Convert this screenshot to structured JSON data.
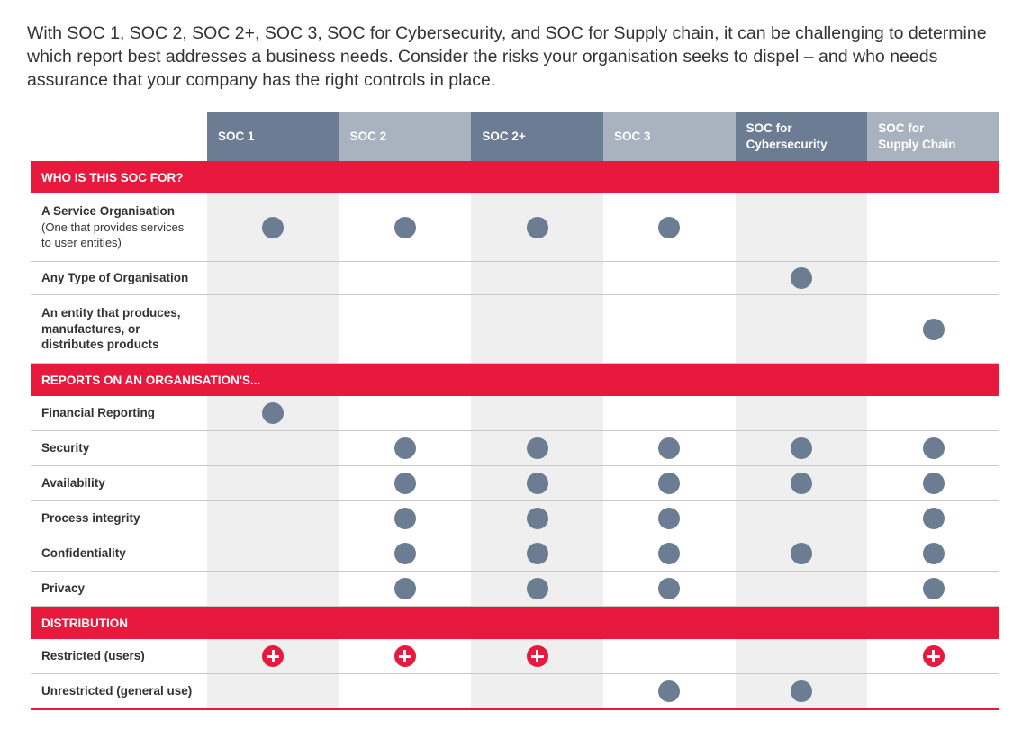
{
  "intro": "With SOC 1, SOC 2, SOC 2+, SOC 3, SOC for Cybersecurity, and SOC for Supply chain, it can be challenging to determine which report best addresses a business needs. Consider the risks your organisation seeks to dispel – and who needs assurance that your company has the right controls in place.",
  "colors": {
    "accent": "#e8193c",
    "dark_header": "#6b7c93",
    "light_header": "#a8b3bf",
    "dot": "#6b7c93",
    "shade": "#efefef"
  },
  "columns": [
    "SOC 1",
    "SOC 2",
    "SOC 2+",
    "SOC 3",
    "SOC for\nCybersecurity",
    "SOC for\nSupply Chain"
  ],
  "sections": [
    {
      "title": "WHO IS THIS SOC FOR?",
      "rows": [
        {
          "label": "A Service Organisation",
          "sub": "(One that provides services\nto user entities)",
          "marks": [
            "dot",
            "dot",
            "dot",
            "dot",
            "",
            ""
          ],
          "height": 76
        },
        {
          "label": "Any Type of Organisation",
          "sub": "",
          "marks": [
            "",
            "",
            "",
            "",
            "dot",
            ""
          ],
          "height": 37
        },
        {
          "label": "An entity that produces,\nmanufactures, or\ndistributes products",
          "sub": "",
          "marks": [
            "",
            "",
            "",
            "",
            "",
            "dot"
          ],
          "height": 76
        }
      ]
    },
    {
      "title": "REPORTS ON AN ORGANISATION'S...",
      "rows": [
        {
          "label": "Financial Reporting",
          "sub": "",
          "marks": [
            "dot",
            "",
            "",
            "",
            "",
            ""
          ],
          "height": 39
        },
        {
          "label": "Security",
          "sub": "",
          "marks": [
            "",
            "dot",
            "dot",
            "dot",
            "dot",
            "dot"
          ],
          "height": 39
        },
        {
          "label": "Availability",
          "sub": "",
          "marks": [
            "",
            "dot",
            "dot",
            "dot",
            "dot",
            "dot"
          ],
          "height": 39
        },
        {
          "label": "Process integrity",
          "sub": "",
          "marks": [
            "",
            "dot",
            "dot",
            "dot",
            "",
            "dot"
          ],
          "height": 39
        },
        {
          "label": "Confidentiality",
          "sub": "",
          "marks": [
            "",
            "dot",
            "dot",
            "dot",
            "dot",
            "dot"
          ],
          "height": 39
        },
        {
          "label": "Privacy",
          "sub": "",
          "marks": [
            "",
            "dot",
            "dot",
            "dot",
            "",
            "dot"
          ],
          "height": 39
        }
      ]
    },
    {
      "title": "DISTRIBUTION",
      "rows": [
        {
          "label": "Restricted (users)",
          "sub": "",
          "marks": [
            "plus",
            "plus",
            "plus",
            "",
            "",
            "plus"
          ],
          "height": 39
        },
        {
          "label": "Unrestricted (general use)",
          "sub": "",
          "marks": [
            "",
            "",
            "",
            "dot",
            "dot",
            ""
          ],
          "height": 40
        }
      ]
    }
  ]
}
